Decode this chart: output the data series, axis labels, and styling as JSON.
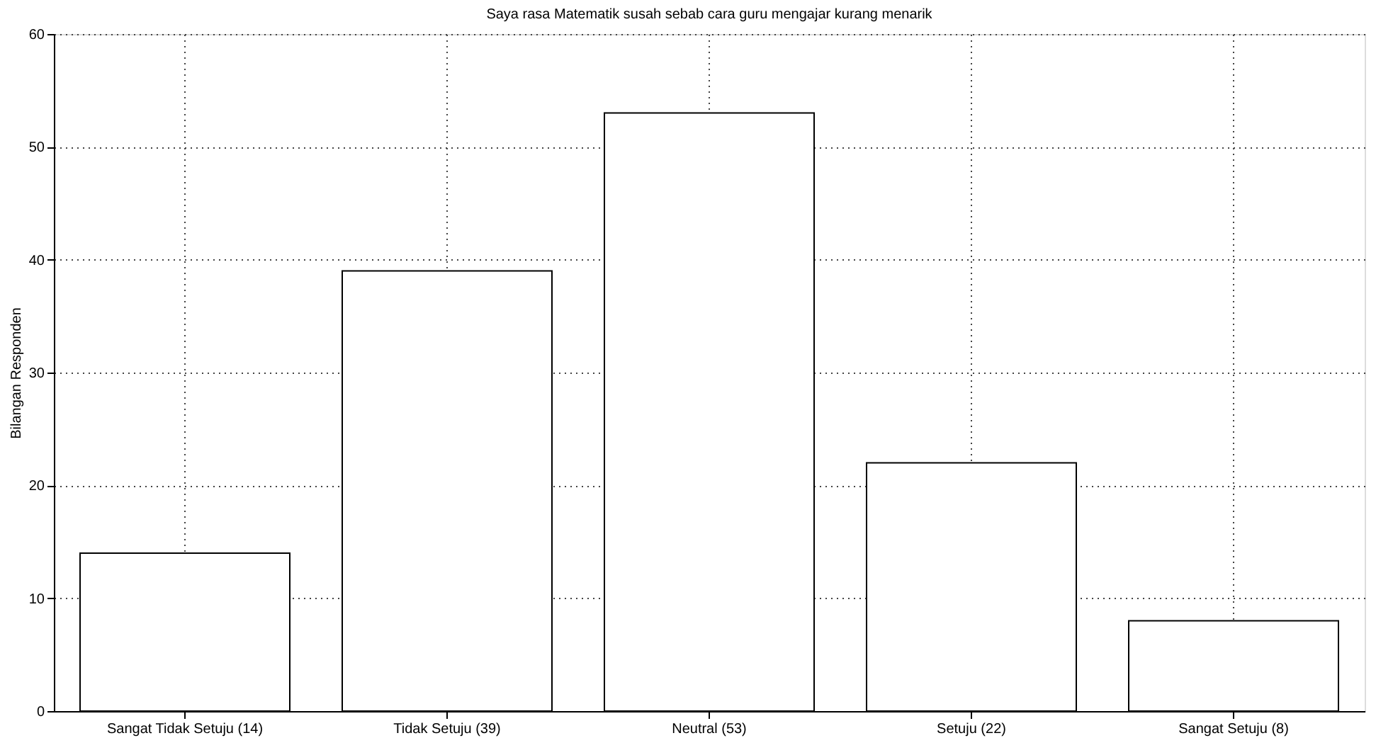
{
  "chart_data": {
    "type": "bar",
    "title": "Saya rasa Matematik susah sebab cara guru mengajar kurang menarik",
    "ylabel": "Bilangan Responden",
    "categories": [
      "Sangat Tidak Setuju (14)",
      "Tidak Setuju (39)",
      "Neutral (53)",
      "Setuju (22)",
      "Sangat Setuju (8)"
    ],
    "values": [
      14,
      39,
      53,
      22,
      8
    ],
    "color": "#ffffff",
    "ylim": [
      0,
      60
    ],
    "yticks": [
      0,
      10,
      20,
      30,
      40,
      50,
      60
    ],
    "grid": true
  }
}
